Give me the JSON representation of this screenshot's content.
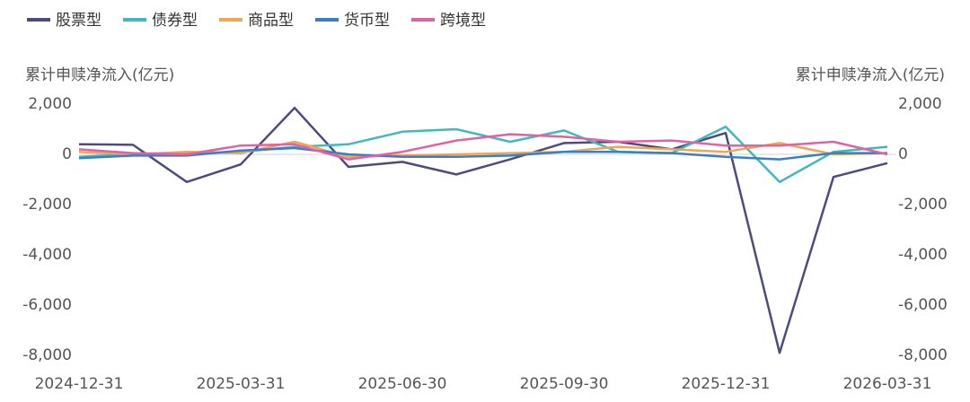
{
  "chart_data": {
    "type": "line",
    "ylabel": "累计申赎净流入(亿元)",
    "y2label": "累计申赎净流入(亿元)",
    "categories": [
      "2024-12-31",
      null,
      null,
      "2025-03-31",
      null,
      null,
      "2025-06-30",
      null,
      null,
      "2025-09-30",
      null,
      null,
      "2025-12-31",
      null,
      null,
      "2026-03-31"
    ],
    "series": [
      {
        "name": "股票型",
        "color": "#4b4b7d",
        "values": [
          400,
          380,
          -1100,
          -400,
          1850,
          -500,
          -300,
          -800,
          -200,
          450,
          500,
          200,
          850,
          -7900,
          -900,
          -350
        ]
      },
      {
        "name": "债券型",
        "color": "#3fb8c0",
        "values": [
          -100,
          0,
          50,
          100,
          300,
          400,
          900,
          1000,
          500,
          950,
          100,
          50,
          1100,
          -1100,
          100,
          300
        ]
      },
      {
        "name": "商品型",
        "color": "#f0a552",
        "values": [
          100,
          0,
          100,
          50,
          500,
          -100,
          -50,
          0,
          50,
          100,
          300,
          200,
          100,
          450,
          0,
          50
        ]
      },
      {
        "name": "货币型",
        "color": "#3a7fc6",
        "values": [
          -150,
          -50,
          -50,
          150,
          250,
          0,
          -100,
          -100,
          -50,
          100,
          100,
          50,
          -100,
          -200,
          50,
          50
        ]
      },
      {
        "name": "跨境型",
        "color": "#e062a6",
        "values": [
          200,
          50,
          0,
          350,
          400,
          -200,
          100,
          550,
          800,
          700,
          500,
          550,
          350,
          350,
          500,
          0
        ]
      }
    ],
    "ylim": [
      -8000,
      2000
    ],
    "yticks": [
      {
        "value": 2000,
        "label": "2,000"
      },
      0,
      {
        "value": -2000,
        "label": "-2,000"
      },
      {
        "value": -4000,
        "label": "-4,000"
      },
      {
        "value": -6000,
        "label": "-6,000"
      },
      {
        "value": -8000,
        "label": "-8,000"
      }
    ],
    "y2lim": [
      -8000,
      2000
    ],
    "y2ticks": [
      {
        "value": 2000,
        "label": "2,000"
      },
      0,
      {
        "value": -2000,
        "label": "-2,000"
      },
      {
        "value": -4000,
        "label": "-4,000"
      },
      {
        "value": -6000,
        "label": "-6,000"
      },
      {
        "value": -8000,
        "label": "-8,000"
      }
    ],
    "legend": "top-left"
  }
}
